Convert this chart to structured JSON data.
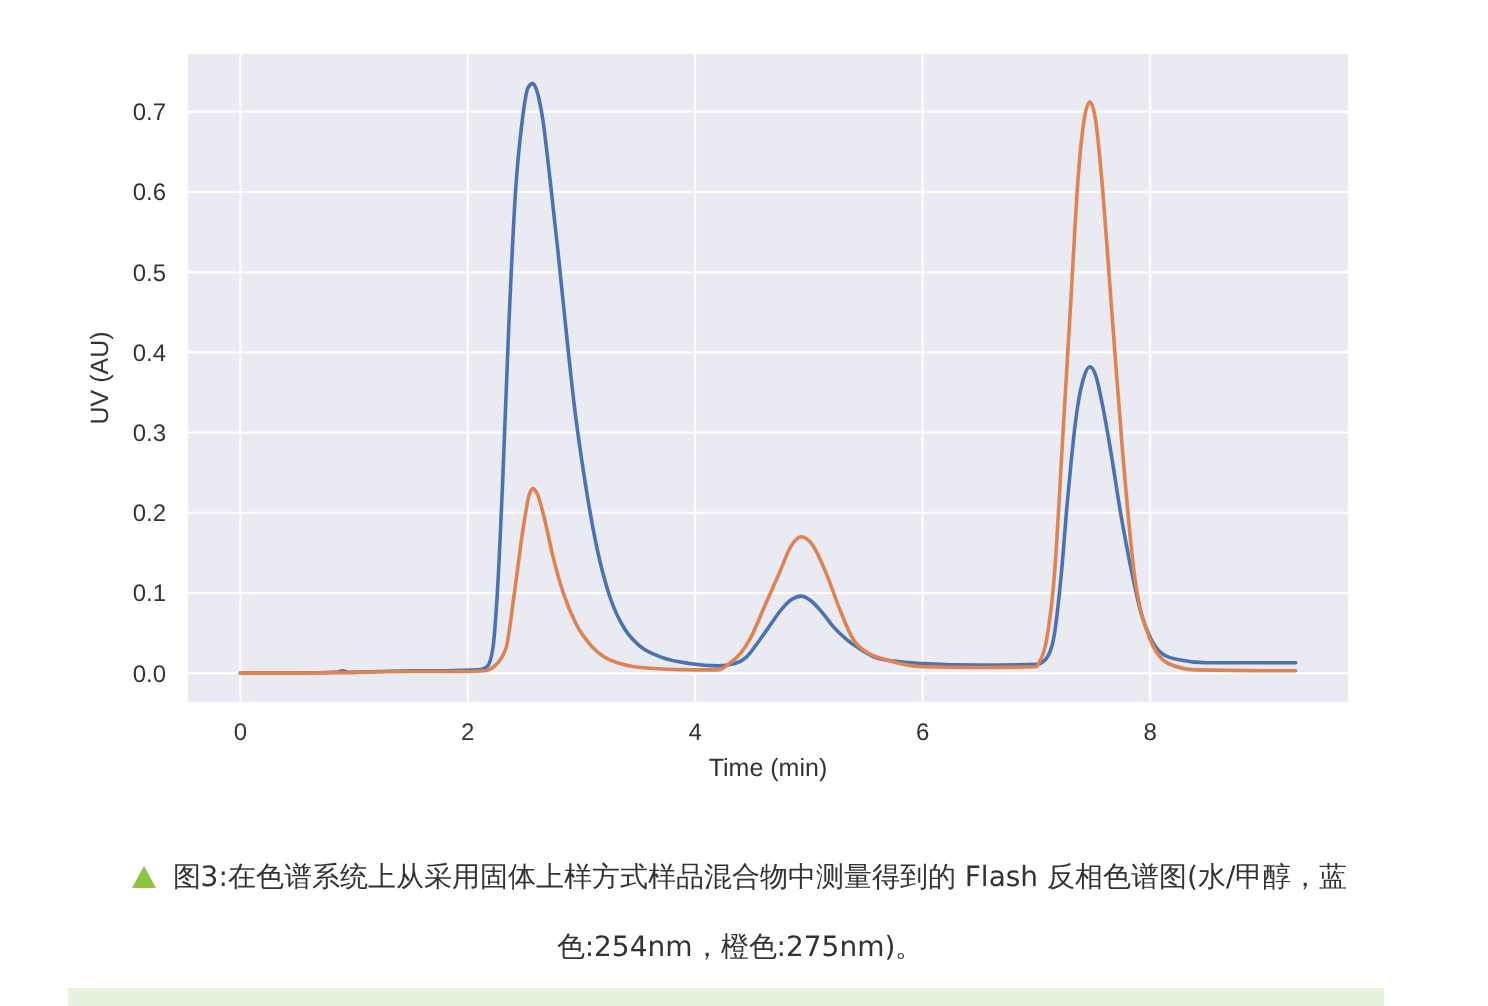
{
  "chart_data": {
    "type": "line",
    "xlabel": "Time (min)",
    "ylabel": "UV (AU)",
    "series": [
      {
        "color": "#4c72b0",
        "x": [
          0,
          0.5,
          0.85,
          0.9,
          0.95,
          1.2,
          1.5,
          1.8,
          2.1,
          2.17,
          2.22,
          2.26,
          2.31,
          2.36,
          2.42,
          2.48,
          2.53,
          2.57,
          2.61,
          2.66,
          2.72,
          2.79,
          2.87,
          2.94,
          3.03,
          3.13,
          3.25,
          3.38,
          3.52,
          3.7,
          3.95,
          4.2,
          4.35,
          4.45,
          4.57,
          4.66,
          4.75,
          4.85,
          4.93,
          5.02,
          5.12,
          5.22,
          5.33,
          5.45,
          5.56,
          5.75,
          6.0,
          6.5,
          7.0,
          7.08,
          7.15,
          7.22,
          7.27,
          7.31,
          7.36,
          7.42,
          7.47,
          7.52,
          7.58,
          7.65,
          7.74,
          7.84,
          7.92,
          8.01,
          8.1,
          8.24,
          8.5,
          9.0,
          9.28
        ],
        "values": [
          0,
          0,
          0.001,
          0.003,
          0.001,
          0.002,
          0.003,
          0.003,
          0.004,
          0.008,
          0.03,
          0.1,
          0.25,
          0.43,
          0.6,
          0.69,
          0.73,
          0.735,
          0.725,
          0.69,
          0.62,
          0.53,
          0.42,
          0.33,
          0.24,
          0.16,
          0.095,
          0.055,
          0.033,
          0.02,
          0.012,
          0.009,
          0.012,
          0.02,
          0.042,
          0.06,
          0.078,
          0.092,
          0.096,
          0.09,
          0.075,
          0.057,
          0.042,
          0.03,
          0.021,
          0.015,
          0.012,
          0.01,
          0.011,
          0.017,
          0.042,
          0.125,
          0.21,
          0.27,
          0.33,
          0.37,
          0.382,
          0.372,
          0.335,
          0.28,
          0.2,
          0.125,
          0.075,
          0.042,
          0.025,
          0.017,
          0.013,
          0.013,
          0.013
        ]
      },
      {
        "color": "#dd8452",
        "x": [
          0,
          0.5,
          1.0,
          1.5,
          2.0,
          2.15,
          2.23,
          2.3,
          2.34,
          2.41,
          2.49,
          2.54,
          2.57,
          2.61,
          2.67,
          2.75,
          2.84,
          2.95,
          3.08,
          3.2,
          3.34,
          3.6,
          4.0,
          4.2,
          4.3,
          4.4,
          4.48,
          4.6,
          4.74,
          4.85,
          4.93,
          5.02,
          5.15,
          5.27,
          5.39,
          5.52,
          5.67,
          6.0,
          6.5,
          7.0,
          7.02,
          7.09,
          7.16,
          7.23,
          7.3,
          7.37,
          7.42,
          7.47,
          7.52,
          7.57,
          7.66,
          7.75,
          7.86,
          8.0,
          8.16,
          8.4,
          9.0,
          9.28
        ],
        "values": [
          0,
          0,
          0.001,
          0.002,
          0.002,
          0.003,
          0.008,
          0.02,
          0.033,
          0.1,
          0.183,
          0.222,
          0.23,
          0.224,
          0.195,
          0.145,
          0.1,
          0.062,
          0.035,
          0.02,
          0.012,
          0.006,
          0.004,
          0.004,
          0.012,
          0.025,
          0.042,
          0.08,
          0.125,
          0.16,
          0.17,
          0.162,
          0.125,
          0.08,
          0.042,
          0.025,
          0.017,
          0.008,
          0.007,
          0.008,
          0.012,
          0.042,
          0.125,
          0.29,
          0.457,
          0.623,
          0.69,
          0.712,
          0.69,
          0.623,
          0.457,
          0.29,
          0.125,
          0.042,
          0.012,
          0.004,
          0.003,
          0.003
        ]
      }
    ],
    "xlim": [
      -0.46,
      9.74
    ],
    "ylim": [
      -0.036,
      0.772
    ],
    "xticks": [
      0,
      2,
      4,
      6,
      8
    ],
    "yticks": [
      {
        "value": 0,
        "label": "0.0"
      },
      0.1,
      0.2,
      0.3,
      0.4,
      0.5,
      0.6,
      0.7
    ],
    "grid": true,
    "annotations": [
      "图3:在色谱系统上从采用固体上样方式样品混合物中测量得到的 Flash 反相色谱图(水/甲醇，蓝色:254nm，橙色:275nm)。"
    ]
  }
}
